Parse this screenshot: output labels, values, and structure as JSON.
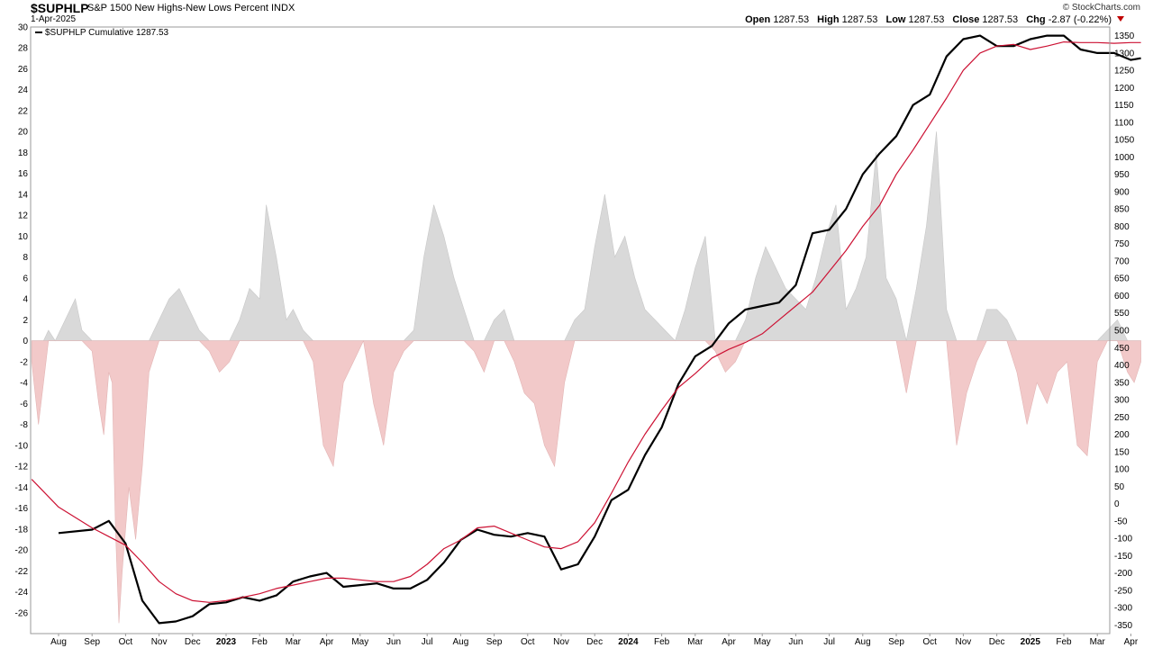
{
  "header": {
    "symbol": "$SUPHLP",
    "description": "S&P 1500 New Highs-New Lows Percent INDX",
    "date": "1-Apr-2025",
    "brand": "© StockCharts.com",
    "open_label": "Open",
    "open": "1287.53",
    "high_label": "High",
    "high": "1287.53",
    "low_label": "Low",
    "low": "1287.53",
    "close_label": "Close",
    "close": "1287.53",
    "chg_label": "Chg",
    "chg": "-2.87 (-0.22%)"
  },
  "chart_data": {
    "type": "line",
    "legend": "$SUPHLP Cumulative 1287.53",
    "x_labels": [
      "Aug",
      "Sep",
      "Oct",
      "Nov",
      "Dec",
      "2023",
      "Feb",
      "Mar",
      "Apr",
      "May",
      "Jun",
      "Jul",
      "Aug",
      "Sep",
      "Oct",
      "Nov",
      "Dec",
      "2024",
      "Feb",
      "Mar",
      "Apr",
      "May",
      "Jun",
      "Jul",
      "Aug",
      "Sep",
      "Oct",
      "Nov",
      "Dec",
      "2025",
      "Feb",
      "Mar",
      "Apr"
    ],
    "left_axis": {
      "ylim": [
        -28,
        30
      ],
      "ticks": [
        30,
        28,
        26,
        24,
        22,
        20,
        18,
        16,
        14,
        12,
        10,
        8,
        6,
        4,
        2,
        0,
        -2,
        -4,
        -6,
        -8,
        -10,
        -12,
        -14,
        -16,
        -18,
        -20,
        -22,
        -24,
        -26
      ]
    },
    "right_axis": {
      "ylim": [
        -375,
        1375
      ],
      "ticks": [
        1350,
        1300,
        1250,
        1200,
        1150,
        1100,
        1050,
        1000,
        950,
        900,
        850,
        800,
        750,
        700,
        650,
        600,
        550,
        500,
        450,
        400,
        350,
        300,
        250,
        200,
        150,
        100,
        50,
        0,
        -50,
        -100,
        -150,
        -200,
        -250,
        -300,
        -350
      ]
    },
    "colors": {
      "cumulative": "#000000",
      "moving_average": "#cc1133",
      "positive_area": "#d9d9d9",
      "negative_area": "#f2c9c9"
    },
    "series": [
      {
        "name": "$SUPHLP Cumulative",
        "axis": "right",
        "x": [
          0,
          1,
          1.5,
          2,
          2.5,
          3,
          3.5,
          4,
          4.5,
          5,
          5.5,
          6,
          6.5,
          7,
          7.5,
          8,
          8.5,
          9,
          9.5,
          10,
          10.5,
          11,
          11.5,
          12,
          12.5,
          13,
          13.5,
          14,
          14.5,
          15,
          15.5,
          16,
          16.5,
          17,
          17.5,
          18,
          18.5,
          19,
          19.5,
          20,
          20.5,
          21,
          21.5,
          22,
          22.5,
          23,
          23.5,
          24,
          24.5,
          25,
          25.5,
          26,
          26.5,
          27,
          27.5,
          28,
          28.5,
          29,
          29.5,
          30,
          30.5,
          31,
          31.5,
          32,
          32.3
        ],
        "values": [
          -85,
          -75,
          -50,
          -115,
          -280,
          -345,
          -340,
          -325,
          -290,
          -285,
          -270,
          -280,
          -265,
          -225,
          -210,
          -200,
          -240,
          -235,
          -230,
          -245,
          -245,
          -220,
          -170,
          -105,
          -75,
          -90,
          -95,
          -85,
          -95,
          -190,
          -175,
          -95,
          10,
          40,
          140,
          220,
          345,
          425,
          455,
          520,
          560,
          570,
          580,
          630,
          780,
          790,
          850,
          950,
          1010,
          1060,
          1150,
          1180,
          1290,
          1340,
          1350,
          1320,
          1320,
          1340,
          1350,
          1350,
          1310,
          1300,
          1300,
          1280,
          1285
        ]
      },
      {
        "name": "",
        "axis": "right",
        "x": [
          -0.8,
          0,
          1,
          1.5,
          2,
          2.5,
          3,
          3.5,
          4,
          4.5,
          5,
          5.5,
          6,
          6.5,
          7,
          7.5,
          8,
          8.5,
          9,
          9.5,
          10,
          10.5,
          11,
          11.5,
          12,
          12.5,
          13,
          13.5,
          14,
          14.5,
          15,
          15.5,
          16,
          16.5,
          17,
          17.5,
          18,
          18.5,
          19,
          19.5,
          20,
          20.5,
          21,
          21.5,
          22,
          22.5,
          23,
          23.5,
          24,
          24.5,
          25,
          25.5,
          26,
          26.5,
          27,
          27.5,
          28,
          28.5,
          29,
          29.5,
          30,
          30.5,
          31,
          31.5,
          32,
          32.3
        ],
        "values": [
          70,
          -10,
          -70,
          -95,
          -120,
          -170,
          -225,
          -260,
          -280,
          -285,
          -280,
          -270,
          -260,
          -245,
          -235,
          -225,
          -215,
          -215,
          -220,
          -225,
          -225,
          -210,
          -175,
          -130,
          -105,
          -70,
          -65,
          -85,
          -105,
          -125,
          -130,
          -110,
          -55,
          30,
          120,
          200,
          270,
          335,
          375,
          420,
          445,
          465,
          490,
          530,
          570,
          610,
          670,
          730,
          800,
          860,
          950,
          1020,
          1095,
          1170,
          1250,
          1300,
          1320,
          1325,
          1310,
          1320,
          1332,
          1330,
          1330,
          1328,
          1330,
          1330
        ]
      },
      {
        "name": "",
        "axis": "left",
        "type": "area",
        "x": [
          -0.8,
          -0.6,
          -0.45,
          -0.3,
          -0.1,
          0.2,
          0.5,
          0.7,
          1,
          1.2,
          1.35,
          1.5,
          1.6,
          1.7,
          1.8,
          1.9,
          2.1,
          2.3,
          2.5,
          2.7,
          3,
          3.3,
          3.6,
          3.9,
          4.2,
          4.5,
          4.8,
          5.1,
          5.4,
          5.7,
          6,
          6.2,
          6.5,
          6.8,
          7,
          7.3,
          7.6,
          7.9,
          8.2,
          8.5,
          8.8,
          9.1,
          9.4,
          9.7,
          10,
          10.3,
          10.6,
          10.9,
          11.2,
          11.5,
          11.8,
          12.1,
          12.4,
          12.7,
          13,
          13.3,
          13.6,
          13.9,
          14.2,
          14.5,
          14.8,
          15.1,
          15.4,
          15.7,
          16,
          16.3,
          16.6,
          16.9,
          17.2,
          17.5,
          17.8,
          18.1,
          18.4,
          18.7,
          19,
          19.3,
          19.6,
          19.9,
          20.2,
          20.5,
          20.8,
          21.1,
          21.4,
          21.7,
          22,
          22.3,
          22.6,
          22.9,
          23.2,
          23.5,
          23.8,
          24.1,
          24.4,
          24.7,
          25,
          25.3,
          25.6,
          25.9,
          26.2,
          26.5,
          26.8,
          27.1,
          27.4,
          27.7,
          28,
          28.3,
          28.6,
          28.9,
          29.2,
          29.5,
          29.8,
          30.1,
          30.4,
          30.7,
          31,
          31.3,
          31.6,
          31.9,
          32.1,
          32.3
        ],
        "values": [
          -2,
          -8,
          -4,
          1,
          0,
          2,
          4,
          1,
          -1,
          -6,
          -9,
          -3,
          -4,
          -18,
          -27,
          -22,
          -14,
          -19,
          -12,
          -3,
          2,
          4,
          5,
          3,
          1,
          -1,
          -3,
          -2,
          2,
          5,
          4,
          13,
          8,
          2,
          3,
          1,
          -2,
          -10,
          -12,
          -4,
          -2,
          0,
          -6,
          -10,
          -3,
          -1,
          1,
          8,
          13,
          10,
          6,
          3,
          -1,
          -3,
          2,
          3,
          -2,
          -5,
          -6,
          -10,
          -12,
          -4,
          2,
          3,
          9,
          14,
          8,
          10,
          6,
          3,
          2,
          1,
          0,
          3,
          7,
          10,
          -1,
          -3,
          -2,
          2,
          6,
          9,
          7,
          5,
          4,
          3,
          6,
          10,
          13,
          3,
          5,
          8,
          18,
          6,
          4,
          -5,
          5,
          11,
          20,
          3,
          -10,
          -5,
          -2,
          3,
          3,
          2,
          -3,
          -8,
          -4,
          -6,
          -3,
          -2,
          -10,
          -11,
          -2,
          1,
          2,
          -3,
          -4,
          -2
        ]
      }
    ]
  }
}
